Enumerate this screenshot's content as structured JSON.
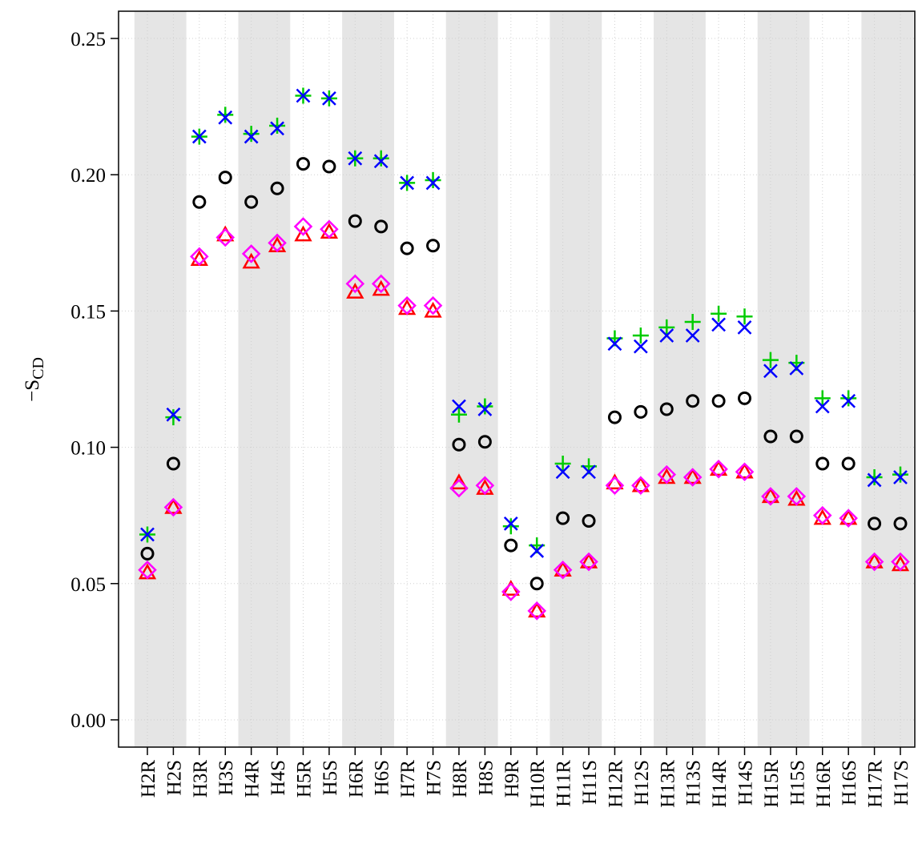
{
  "chart_data": {
    "type": "scatter",
    "y_label": "−S",
    "y_label_sub": "CD",
    "categories": [
      "H2R",
      "H2S",
      "H3R",
      "H3S",
      "H4R",
      "H4S",
      "H5R",
      "H5S",
      "H6R",
      "H6S",
      "H7R",
      "H7S",
      "H8R",
      "H8S",
      "H9R",
      "H10R",
      "H11R",
      "H11S",
      "H12R",
      "H12S",
      "H13R",
      "H13S",
      "H14R",
      "H14S",
      "H15R",
      "H15S",
      "H16R",
      "H16S",
      "H17R",
      "H17S"
    ],
    "series": [
      {
        "marker": "circle",
        "color": "#000000",
        "values": [
          0.061,
          0.094,
          0.19,
          0.199,
          0.19,
          0.195,
          0.204,
          0.203,
          0.183,
          0.181,
          0.173,
          0.174,
          0.101,
          0.102,
          0.064,
          0.05,
          0.074,
          0.073,
          0.111,
          0.113,
          0.114,
          0.117,
          0.117,
          0.118,
          0.104,
          0.104,
          0.094,
          0.094,
          0.072,
          0.072
        ]
      },
      {
        "marker": "triangle",
        "color": "#ff0000",
        "values": [
          0.054,
          0.078,
          0.169,
          0.178,
          0.168,
          0.174,
          0.178,
          0.179,
          0.157,
          0.158,
          0.151,
          0.15,
          0.087,
          0.085,
          0.048,
          0.04,
          0.055,
          0.058,
          0.087,
          0.086,
          0.089,
          0.089,
          0.092,
          0.091,
          0.082,
          0.081,
          0.074,
          0.074,
          0.058,
          0.057
        ]
      },
      {
        "marker": "plus",
        "color": "#00cc00",
        "values": [
          0.068,
          0.111,
          0.214,
          0.222,
          0.215,
          0.218,
          0.229,
          0.228,
          0.206,
          0.206,
          0.197,
          0.198,
          0.112,
          0.115,
          0.071,
          0.064,
          0.094,
          0.093,
          0.14,
          0.141,
          0.144,
          0.146,
          0.149,
          0.148,
          0.132,
          0.131,
          0.118,
          0.118,
          0.089,
          0.09
        ]
      },
      {
        "marker": "cross",
        "color": "#0000ff",
        "values": [
          0.068,
          0.112,
          0.214,
          0.221,
          0.214,
          0.217,
          0.229,
          0.228,
          0.206,
          0.205,
          0.197,
          0.197,
          0.115,
          0.114,
          0.072,
          0.062,
          0.091,
          0.091,
          0.138,
          0.137,
          0.141,
          0.141,
          0.145,
          0.144,
          0.128,
          0.129,
          0.115,
          0.117,
          0.088,
          0.089
        ]
      },
      {
        "marker": "diamond",
        "color": "#ff00ff",
        "values": [
          0.055,
          0.078,
          0.17,
          0.177,
          0.171,
          0.175,
          0.181,
          0.18,
          0.16,
          0.16,
          0.152,
          0.152,
          0.085,
          0.086,
          0.047,
          0.04,
          0.055,
          0.058,
          0.086,
          0.086,
          0.09,
          0.089,
          0.092,
          0.091,
          0.082,
          0.082,
          0.075,
          0.074,
          0.058,
          0.058
        ]
      }
    ],
    "ylim": [
      -0.01,
      0.26
    ],
    "yticks": [
      {
        "value": 0,
        "label": "0.00"
      },
      {
        "value": 0.05,
        "label": "0.05"
      },
      {
        "value": 0.1,
        "label": "0.10"
      },
      {
        "value": 0.15,
        "label": "0.15"
      },
      {
        "value": 0.2,
        "label": "0.20"
      },
      {
        "value": 0.25,
        "label": "0.25"
      }
    ],
    "grid": true
  }
}
